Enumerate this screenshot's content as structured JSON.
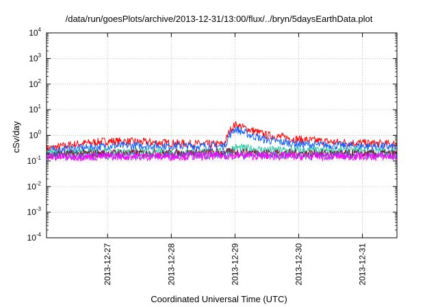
{
  "chart_data": {
    "type": "line",
    "title": "/data/run/goesPlots/archive/2013-12-31/13:00/flux/../bryn/5daysEarthData.plot",
    "xlabel": "Coordinated Universal Time (UTC)",
    "ylabel": "cSv/day",
    "yscale": "log",
    "ylim": [
      0.0001,
      10000
    ],
    "y_ticks": [
      {
        "base": "10",
        "exp": "-4",
        "value": 0.0001
      },
      {
        "base": "10",
        "exp": "-3",
        "value": 0.001
      },
      {
        "base": "10",
        "exp": "-2",
        "value": 0.01
      },
      {
        "base": "10",
        "exp": "-1",
        "value": 0.1
      },
      {
        "base": "10",
        "exp": "0",
        "value": 1
      },
      {
        "base": "10",
        "exp": "1",
        "value": 10
      },
      {
        "base": "10",
        "exp": "2",
        "value": 100
      },
      {
        "base": "10",
        "exp": "3",
        "value": 1000
      },
      {
        "base": "10",
        "exp": "4",
        "value": 10000
      }
    ],
    "xlim": [
      "2013-12-26 01:00",
      "2013-12-31 13:00"
    ],
    "x_tick_labels": [
      "2013-12-27",
      "2013-12-28",
      "2013-12-29",
      "2013-12-30",
      "2013-12-31"
    ],
    "x_tick_dates": [
      "2013-12-27 00:00",
      "2013-12-28 00:00",
      "2013-12-29 00:00",
      "2013-12-30 00:00",
      "2013-12-31 00:00"
    ],
    "grid": true,
    "series": [
      {
        "color": "#ff0000",
        "x": [
          "2013-12-26 01:00",
          "2013-12-26 12:00",
          "2013-12-27 00:00",
          "2013-12-27 12:00",
          "2013-12-28 00:00",
          "2013-12-28 12:00",
          "2013-12-28 20:00",
          "2013-12-28 22:00",
          "2013-12-29 00:00",
          "2013-12-29 06:00",
          "2013-12-29 12:00",
          "2013-12-30 00:00",
          "2013-12-30 12:00",
          "2013-12-31 00:00",
          "2013-12-31 13:00"
        ],
        "y": [
          0.3,
          0.45,
          0.6,
          0.55,
          0.5,
          0.45,
          0.45,
          1.5,
          2.6,
          1.6,
          1.0,
          0.7,
          0.55,
          0.5,
          0.45
        ]
      },
      {
        "color": "#1060ff",
        "x": [
          "2013-12-26 01:00",
          "2013-12-26 12:00",
          "2013-12-27 00:00",
          "2013-12-27 12:00",
          "2013-12-28 00:00",
          "2013-12-28 12:00",
          "2013-12-28 20:00",
          "2013-12-28 22:00",
          "2013-12-29 00:00",
          "2013-12-29 06:00",
          "2013-12-29 12:00",
          "2013-12-30 00:00",
          "2013-12-30 12:00",
          "2013-12-31 00:00",
          "2013-12-31 13:00"
        ],
        "y": [
          0.25,
          0.3,
          0.38,
          0.4,
          0.38,
          0.38,
          0.38,
          1.0,
          1.8,
          1.0,
          0.65,
          0.45,
          0.4,
          0.38,
          0.35
        ]
      },
      {
        "color": "#20c8a0",
        "x": [
          "2013-12-26 01:00",
          "2013-12-27 00:00",
          "2013-12-28 00:00",
          "2013-12-28 20:00",
          "2013-12-29 00:00",
          "2013-12-29 12:00",
          "2013-12-30 00:00",
          "2013-12-31 00:00",
          "2013-12-31 13:00"
        ],
        "y": [
          0.2,
          0.22,
          0.22,
          0.22,
          0.33,
          0.27,
          0.25,
          0.24,
          0.23
        ]
      },
      {
        "color": "#7a1430",
        "x": [
          "2013-12-26 01:00",
          "2013-12-27 00:00",
          "2013-12-28 00:00",
          "2013-12-29 00:00",
          "2013-12-30 00:00",
          "2013-12-31 00:00",
          "2013-12-31 13:00"
        ],
        "y": [
          0.18,
          0.2,
          0.2,
          0.22,
          0.2,
          0.19,
          0.19
        ]
      },
      {
        "color": "#6a5acd",
        "x": [
          "2013-12-26 01:00",
          "2013-12-27 00:00",
          "2013-12-28 00:00",
          "2013-12-29 00:00",
          "2013-12-30 00:00",
          "2013-12-31 00:00",
          "2013-12-31 13:00"
        ],
        "y": [
          0.15,
          0.16,
          0.16,
          0.17,
          0.16,
          0.16,
          0.16
        ]
      },
      {
        "color": "#ff00ff",
        "x": [
          "2013-12-26 01:00",
          "2013-12-27 00:00",
          "2013-12-28 00:00",
          "2013-12-29 00:00",
          "2013-12-30 00:00",
          "2013-12-31 00:00",
          "2013-12-31 13:00"
        ],
        "y": [
          0.14,
          0.15,
          0.15,
          0.16,
          0.15,
          0.15,
          0.15
        ]
      }
    ]
  }
}
